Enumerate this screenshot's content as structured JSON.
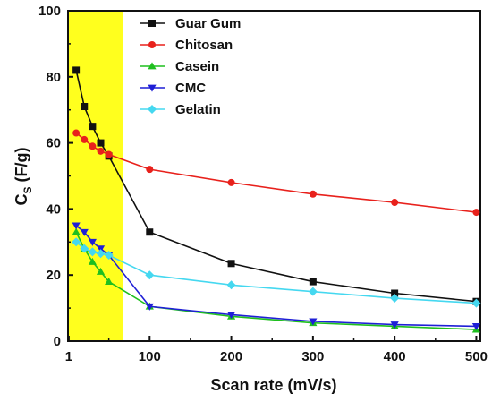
{
  "chart_data": {
    "type": "line",
    "title": "",
    "xlabel": "Scan rate (mV/s)",
    "ylabel_main": "C",
    "ylabel_sub": "S",
    "ylabel_unit": " (F/g)",
    "xlim": [
      0,
      505
    ],
    "ylim": [
      0,
      100
    ],
    "xticks": [
      1,
      100,
      200,
      300,
      400,
      500
    ],
    "yticks": [
      0,
      20,
      40,
      60,
      80,
      100
    ],
    "highlight_region": {
      "x_from": 0,
      "x_to": 67,
      "color": "#ffff1e"
    },
    "legend_position": "top-right",
    "series": [
      {
        "name": "Guar Gum",
        "color": "#111111",
        "marker": "square",
        "x": [
          10,
          20,
          30,
          40,
          50,
          100,
          200,
          300,
          400,
          500
        ],
        "y": [
          82,
          71,
          65,
          60,
          56,
          33,
          23.5,
          18,
          14.5,
          12
        ]
      },
      {
        "name": "Chitosan",
        "color": "#e8211c",
        "marker": "circle",
        "x": [
          10,
          20,
          30,
          40,
          50,
          100,
          200,
          300,
          400,
          500
        ],
        "y": [
          63,
          61,
          59,
          57.5,
          56.5,
          52,
          48,
          44.5,
          42,
          39
        ]
      },
      {
        "name": "Casein",
        "color": "#1fbf1f",
        "marker": "triangle-up",
        "x": [
          10,
          20,
          30,
          40,
          50,
          100,
          200,
          300,
          400,
          500
        ],
        "y": [
          33,
          28,
          24,
          21,
          18,
          10.5,
          7.5,
          5.5,
          4.5,
          3.5
        ]
      },
      {
        "name": "CMC",
        "color": "#1f1fd6",
        "marker": "triangle-down",
        "x": [
          10,
          20,
          30,
          40,
          50,
          100,
          200,
          300,
          400,
          500
        ],
        "y": [
          35,
          33,
          30,
          28,
          26,
          10.5,
          8,
          6,
          5,
          4.5
        ]
      },
      {
        "name": "Gelatin",
        "color": "#45d8f0",
        "marker": "diamond",
        "x": [
          10,
          20,
          30,
          40,
          50,
          100,
          200,
          300,
          400,
          500
        ],
        "y": [
          30,
          28,
          27,
          26.5,
          26,
          20,
          17,
          15,
          13,
          11.5
        ]
      }
    ]
  }
}
